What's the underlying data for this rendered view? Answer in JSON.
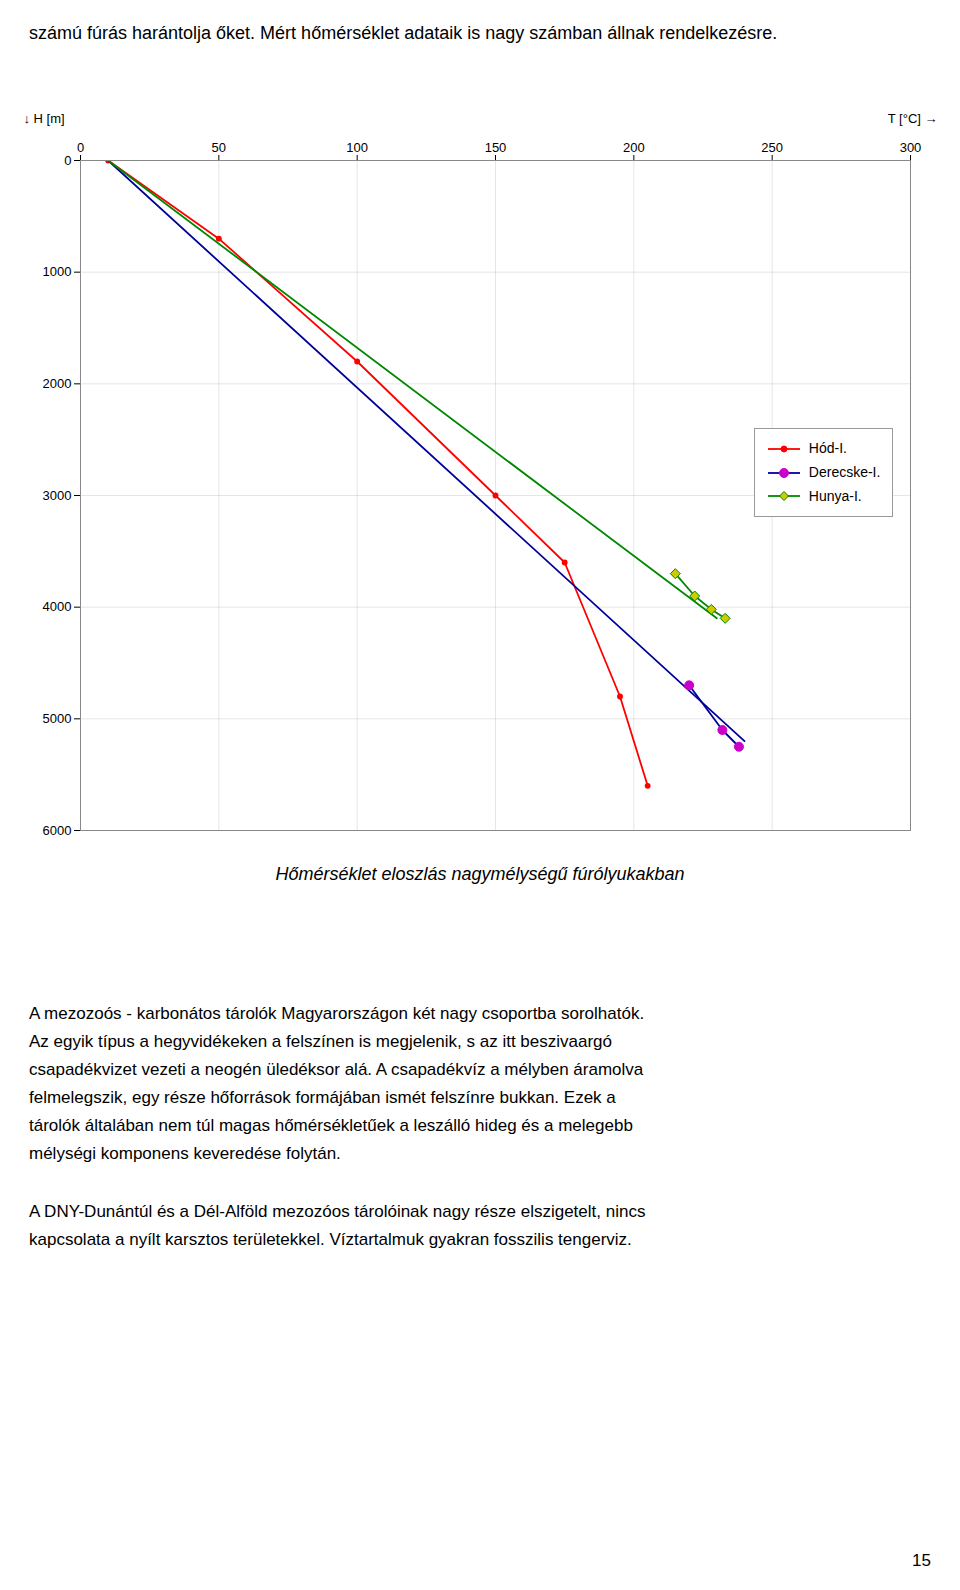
{
  "chart_data": {
    "type": "line",
    "title": "Hőmérséklet eloszlás nagymélységű fúrólyukakban",
    "xlabel": "T [°C]",
    "ylabel": "H [m]",
    "xlim": [
      0,
      300
    ],
    "ylim": [
      6000,
      0
    ],
    "xticks": [
      0,
      50,
      100,
      150,
      200,
      250,
      300
    ],
    "yticks": [
      0,
      1000,
      2000,
      3000,
      4000,
      5000,
      6000
    ],
    "grid": true,
    "legend": "right",
    "series": [
      {
        "name": "Hód-I.",
        "color": "#FF0000",
        "marker": "circle",
        "x": [
          10,
          50,
          100,
          150,
          175,
          195,
          205
        ],
        "values": [
          0,
          700,
          1800,
          3000,
          3600,
          4800,
          5600
        ]
      },
      {
        "name": "Derecske-I.",
        "color": "#000099",
        "marker": "circle",
        "marker_color": "#CC00CC",
        "x": [
          10,
          240
        ],
        "values": [
          0,
          5200
        ],
        "markers": {
          "x": [
            220,
            232,
            238
          ],
          "values": [
            4700,
            5100,
            5250
          ]
        }
      },
      {
        "name": "Hunya-I.",
        "color": "#008800",
        "marker": "diamond",
        "marker_color": "#CCCC00",
        "x": [
          10,
          230
        ],
        "values": [
          0,
          4100
        ],
        "markers": {
          "x": [
            215,
            222,
            228,
            233
          ],
          "values": [
            3700,
            3900,
            4020,
            4100
          ]
        }
      }
    ],
    "annotations": [
      [
        "számú fúrás harántolja őket. Mért hőmérséklet adataik is nagy számban állnak rendelkezésre."
      ],
      [
        "A mezozoós - karbonátos tárolók Magyarországon két nagy csoportba sorolhatók.",
        "Az egyik típus a hegyvidékeken a felszínen is megjelenik, s az itt beszivaargó",
        "csapadékvizet vezeti a neogén üledéksor alá. A csapadékvíz a mélyben áramolva",
        "felmelegszik, egy része hőforrások formájában ismét felszínre bukkan. Ezek a",
        "tárolók általában nem túl magas hőmérsékletűek a leszálló hideg és a melegebb",
        "mélységi komponens keveredése folytán."
      ],
      [
        "A DNY-Dunántúl és a Dél-Alföld mezozóos tárolóinak nagy része elszigetelt, nincs",
        "kapcsolata a nyílt karsztos területekkel. Víztartalmuk gyakran fosszilis tengerviz."
      ],
      [
        "15"
      ]
    ]
  }
}
